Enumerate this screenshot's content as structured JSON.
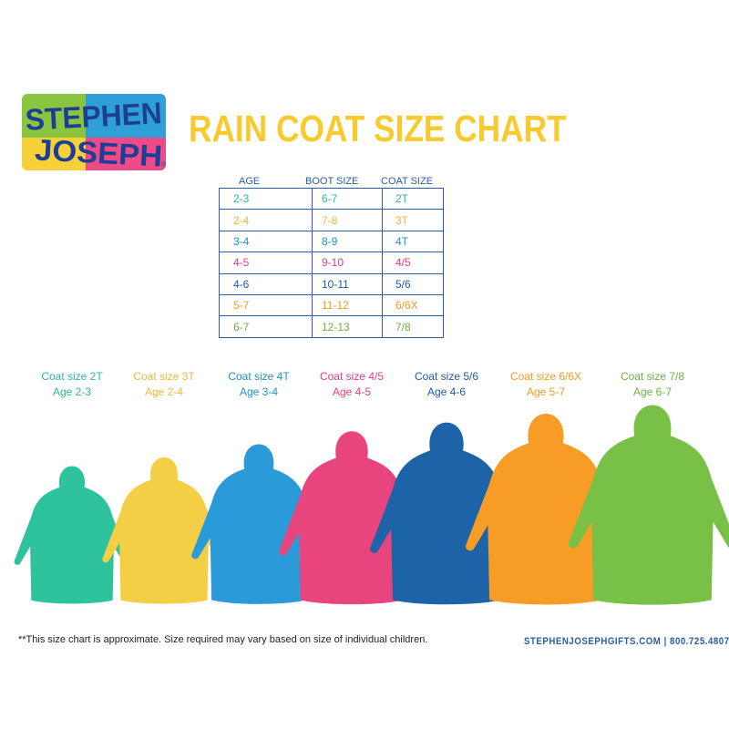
{
  "brand": {
    "line1": "STEPHEN",
    "line2": "JOSEPH",
    "mark": "®"
  },
  "title": "RAIN COAT SIZE CHART",
  "table": {
    "headers": [
      "AGE",
      "BOOT SIZE",
      "COAT SIZE"
    ],
    "rows": [
      {
        "age": "2-3",
        "boot": "6-7",
        "coat": "2T",
        "color": "#2bb89a"
      },
      {
        "age": "2-4",
        "boot": "7-8",
        "coat": "3T",
        "color": "#f0b73c"
      },
      {
        "age": "3-4",
        "boot": "8-9",
        "coat": "4T",
        "color": "#1f8fd0"
      },
      {
        "age": "4-5",
        "boot": "9-10",
        "coat": "4/5",
        "color": "#e23e7a"
      },
      {
        "age": "4-6",
        "boot": "10-11",
        "coat": "5/6",
        "color": "#1e5aa6"
      },
      {
        "age": "5-7",
        "boot": "11-12",
        "coat": "6/6X",
        "color": "#f39a1e"
      },
      {
        "age": "6-7",
        "boot": "12-13",
        "coat": "7/8",
        "color": "#6cb33f"
      }
    ]
  },
  "coats": [
    {
      "size": "Coat size 2T",
      "age": "Age 2-3",
      "color": "#2ec39d",
      "label_color": "#2bb89a"
    },
    {
      "size": "Coat size 3T",
      "age": "Age 2-4",
      "color": "#f4cf46",
      "label_color": "#f0b73c"
    },
    {
      "size": "Coat size 4T",
      "age": "Age 3-4",
      "color": "#2a9ad8",
      "label_color": "#1f8fd0"
    },
    {
      "size": "Coat size 4/5",
      "age": "Age 4-5",
      "color": "#e8457e",
      "label_color": "#e23e7a"
    },
    {
      "size": "Coat size 5/6",
      "age": "Age 4-6",
      "color": "#1c63a8",
      "label_color": "#1e5aa6"
    },
    {
      "size": "Coat size 6/6X",
      "age": "Age 5-7",
      "color": "#f79c25",
      "label_color": "#f39a1e"
    },
    {
      "size": "Coat size 7/8",
      "age": "Age 6-7",
      "color": "#79c046",
      "label_color": "#6cb33f"
    }
  ],
  "footnote": "**This size chart is approximate. Size required may vary based on size of individual children.",
  "website": "STEPHENJOSEPHGIFTS.COM  |  800.725.4807"
}
